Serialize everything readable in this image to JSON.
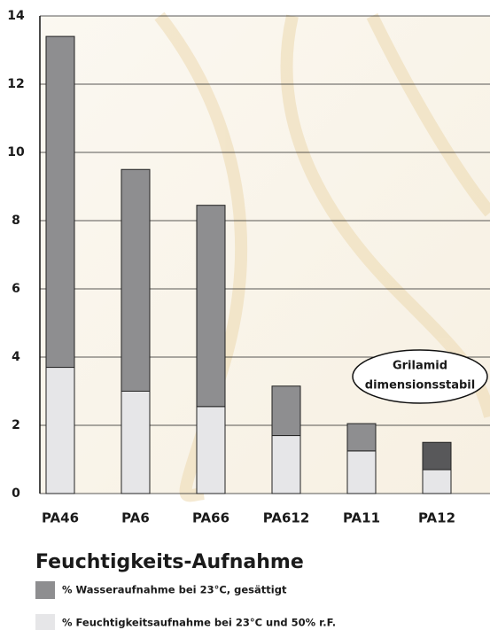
{
  "chart_data": {
    "type": "stacked-bar",
    "title": "Feuchtigkeits-Aufnahme",
    "categories": [
      "PA46",
      "PA6",
      "PA66",
      "PA612",
      "PA11",
      "PA12"
    ],
    "series": [
      {
        "name": "% Feuchtigkeitsaufnahme bei 23°C und 50% r.F.",
        "color": "#e6e6e8",
        "values": [
          3.7,
          3.0,
          2.55,
          1.7,
          1.25,
          0.7
        ]
      },
      {
        "name": "% Wasseraufnahme bei 23°C, gesättigt",
        "color": "#8e8e90",
        "colors": [
          "#8e8e90",
          "#8e8e90",
          "#8e8e90",
          "#8e8e90",
          "#8e8e90",
          "#58585a"
        ],
        "values": [
          9.7,
          6.5,
          5.9,
          1.45,
          0.8,
          0.8
        ]
      }
    ],
    "annotation": [
      "Grilamid",
      "dimensionsstabil"
    ],
    "ylim": [
      0,
      14
    ],
    "yticks": [
      0,
      2,
      4,
      6,
      8,
      10,
      12,
      14
    ],
    "grid": true
  }
}
